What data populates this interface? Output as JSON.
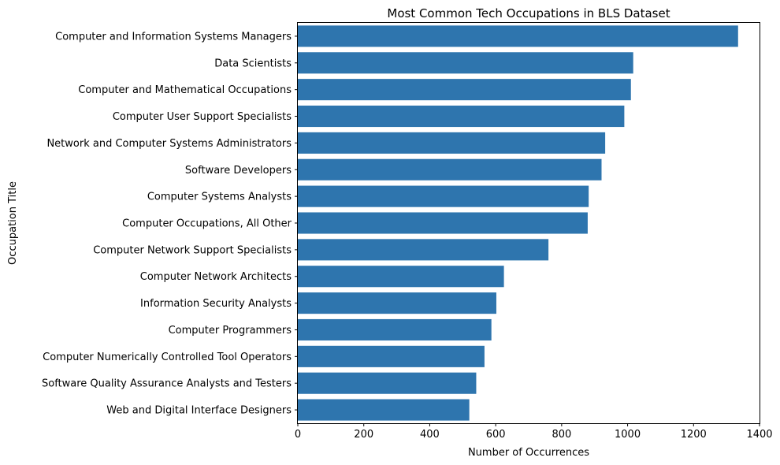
{
  "chart_data": {
    "type": "bar",
    "orientation": "horizontal",
    "title": "Most Common Tech Occupations in BLS Dataset",
    "xlabel": "Number of Occurrences",
    "ylabel": "Occupation Title",
    "xlim": [
      0,
      1400
    ],
    "xticks": [
      0,
      200,
      400,
      600,
      800,
      1000,
      1200,
      1400
    ],
    "grid": false,
    "bar_color": "#2e75ae",
    "categories": [
      "Computer and Information Systems Managers",
      "Data Scientists",
      "Computer and Mathematical Occupations",
      "Computer User Support Specialists",
      "Network and Computer Systems Administrators",
      "Software Developers",
      "Computer Systems Analysts",
      "Computer Occupations, All Other",
      "Computer Network Support Specialists",
      "Computer Network Architects",
      "Information Security Analysts",
      "Computer Programmers",
      "Computer Numerically Controlled Tool Operators",
      "Software Quality Assurance Analysts and Testers",
      "Web and Digital Interface Designers"
    ],
    "values": [
      1335,
      1017,
      1010,
      990,
      932,
      921,
      882,
      879,
      760,
      625,
      602,
      587,
      566,
      541,
      520
    ]
  }
}
